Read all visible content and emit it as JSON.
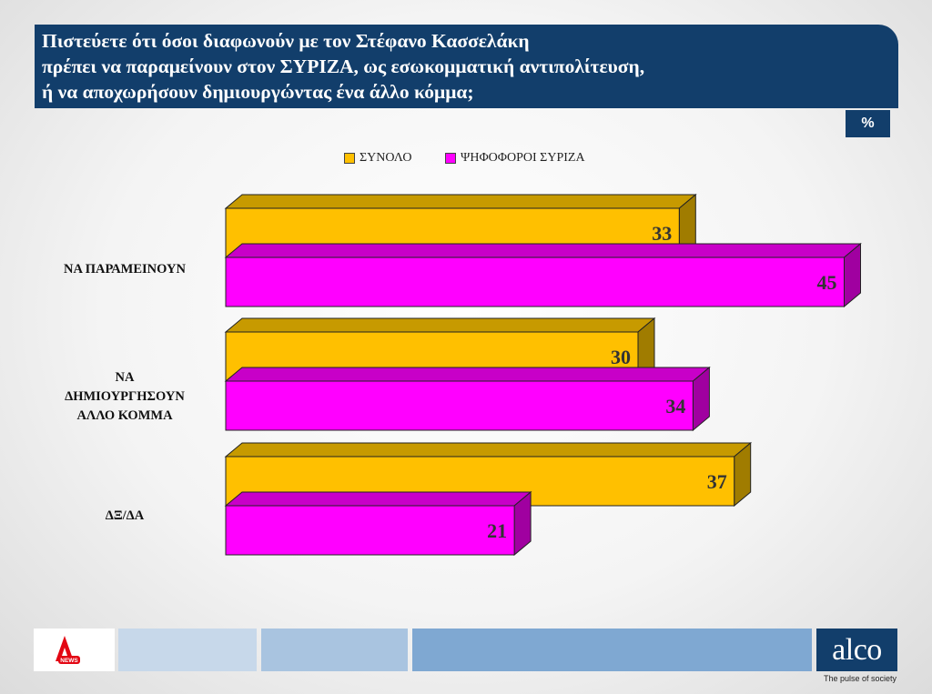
{
  "header": {
    "title_lines": [
      "Πιστεύετε  ότι όσοι διαφωνούν με τον Στέφανο  Κασσελάκη",
      "πρέπει να παραμείνουν στον ΣΥΡΙΖΑ, ως εσωκομματική αντιπολίτευση,",
      "ή να αποχωρήσουν δημιουργώντας ένα άλλο κόμμα;"
    ],
    "unit_badge": "%"
  },
  "footer": {
    "brand": "alco",
    "tagline": "The pulse of society",
    "partner_logo_text": "NEWS"
  },
  "colors": {
    "header_bg": "#123e6b",
    "series_1": "#ffc000",
    "series_2": "#ff00ff"
  },
  "chart_data": {
    "type": "bar",
    "orientation": "horizontal",
    "three_d": true,
    "categories": [
      "ΝΑ ΠΑΡΑΜΕΙΝΟΥΝ",
      "ΝΑ ΔΗΜΙΟΥΡΓΗΣΟΥΝ ΑΛΛΟ ΚΟΜΜΑ",
      "ΔΞ/ΔΑ"
    ],
    "category_label_lines": [
      [
        "ΝΑ ΠΑΡΑΜΕΙΝΟΥΝ"
      ],
      [
        "ΝΑ",
        "ΔΗΜΙΟΥΡΓΗΣΟΥΝ",
        "ΑΛΛΟ ΚΟΜΜΑ"
      ],
      [
        "ΔΞ/ΔΑ"
      ]
    ],
    "series": [
      {
        "name": "ΣΥΝΟΛΟ",
        "values": [
          33,
          30,
          37
        ],
        "color": "#ffc000"
      },
      {
        "name": "ΨΗΦΟΦΟΡΟΙ ΣΥΡΙΖΑ",
        "values": [
          45,
          34,
          21
        ],
        "color": "#ff00ff"
      }
    ],
    "xlim": [
      0,
      50
    ],
    "grid": false,
    "legend_position": "top",
    "data_labels": true
  }
}
